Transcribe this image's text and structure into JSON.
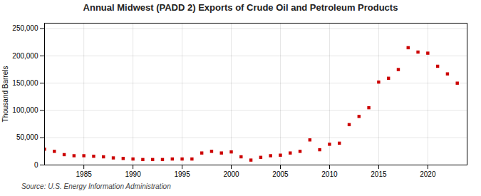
{
  "chart_data": {
    "type": "scatter",
    "title": "Annual Midwest (PADD 2) Exports of Crude Oil and Petroleum Products",
    "ylabel": "Thousand Barrels",
    "source": "Source: U.S. Energy Information Administration",
    "x": [
      1981,
      1982,
      1983,
      1984,
      1985,
      1986,
      1987,
      1988,
      1989,
      1990,
      1991,
      1992,
      1993,
      1994,
      1995,
      1996,
      1997,
      1998,
      1999,
      2000,
      2001,
      2002,
      2003,
      2004,
      2005,
      2006,
      2007,
      2008,
      2009,
      2010,
      2011,
      2012,
      2013,
      2014,
      2015,
      2016,
      2017,
      2018,
      2019,
      2020,
      2021,
      2022,
      2023
    ],
    "values": [
      29000,
      25000,
      19000,
      17000,
      17000,
      16000,
      15000,
      13000,
      12000,
      11000,
      10000,
      10000,
      10000,
      11000,
      11000,
      11000,
      22000,
      25000,
      22000,
      24000,
      15000,
      9000,
      14000,
      17000,
      18000,
      22000,
      25000,
      46000,
      28000,
      38000,
      40000,
      74000,
      89000,
      105000,
      152000,
      159000,
      175000,
      215000,
      207000,
      205000,
      181000,
      167000,
      150000
    ],
    "color": "#cc0000",
    "marker": "square",
    "xlim": [
      1981,
      2024
    ],
    "ylim": [
      0,
      260000
    ],
    "xticks": [
      1985,
      1990,
      1995,
      2000,
      2005,
      2010,
      2015,
      2020
    ],
    "yticks": [
      0,
      {
        "value": 50000,
        "label": "50,000"
      },
      {
        "value": 100000,
        "label": "100,000"
      },
      {
        "value": 150000,
        "label": "150,000"
      },
      {
        "value": 200000,
        "label": "200,000"
      },
      {
        "value": 250000,
        "label": "250,000"
      }
    ],
    "grid": true
  }
}
